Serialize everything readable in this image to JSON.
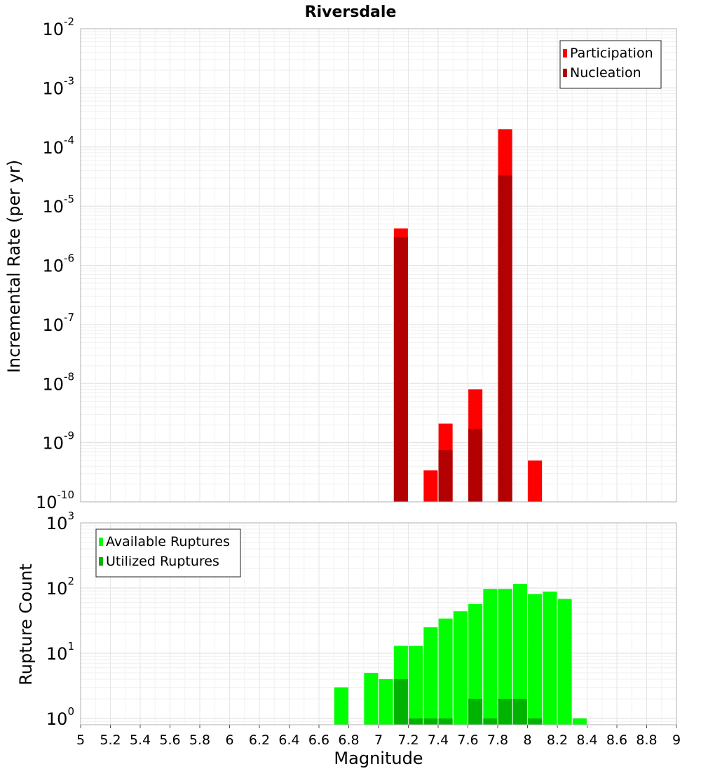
{
  "chart_data": [
    {
      "type": "bar",
      "title": "Riversdale",
      "ylabel": "Incremental Rate (per yr)",
      "xlabel": "",
      "yscale": "log",
      "ylim": [
        1e-10,
        0.01
      ],
      "xlim": [
        5,
        9
      ],
      "grid": true,
      "legend_position": "top-right",
      "x": [
        7.15,
        7.35,
        7.45,
        7.65,
        7.85,
        8.05
      ],
      "series": [
        {
          "name": "Participation",
          "color": "#ff0000",
          "values": [
            4.2e-06,
            3.4e-10,
            2.1e-09,
            8e-09,
            0.0002,
            5e-10
          ]
        },
        {
          "name": "Nucleation",
          "color": "#b30000",
          "values": [
            3e-06,
            null,
            7.5e-10,
            1.7e-09,
            3.3e-05,
            null
          ]
        }
      ],
      "ytick_labels": [
        {
          "base": "10",
          "exp": "-2"
        },
        {
          "base": "10",
          "exp": "-3"
        },
        {
          "base": "10",
          "exp": "-4"
        },
        {
          "base": "10",
          "exp": "-5"
        },
        {
          "base": "10",
          "exp": "-6"
        },
        {
          "base": "10",
          "exp": "-7"
        },
        {
          "base": "10",
          "exp": "-8"
        },
        {
          "base": "10",
          "exp": "-9"
        },
        {
          "base": "10",
          "exp": "-10"
        }
      ]
    },
    {
      "type": "bar",
      "title": "",
      "ylabel": "Rupture Count",
      "xlabel": "Magnitude",
      "yscale": "log",
      "ylim": [
        0.8,
        1000
      ],
      "xlim": [
        5,
        9
      ],
      "grid": true,
      "legend_position": "top-left",
      "x": [
        6.75,
        6.95,
        7.05,
        7.15,
        7.25,
        7.35,
        7.45,
        7.55,
        7.65,
        7.75,
        7.85,
        7.95,
        8.05,
        8.15,
        8.25,
        8.35
      ],
      "series": [
        {
          "name": "Available Ruptures",
          "color": "#00ff00",
          "values": [
            3,
            5,
            4,
            13,
            13,
            25,
            34,
            44,
            57,
            97,
            97,
            116,
            81,
            88,
            68,
            1
          ]
        },
        {
          "name": "Utilized Ruptures",
          "color": "#00b300",
          "values": [
            null,
            null,
            null,
            4,
            1,
            1,
            1,
            null,
            2,
            1,
            2,
            2,
            1,
            null,
            null,
            null
          ]
        }
      ],
      "ytick_labels": [
        {
          "base": "10",
          "exp": "3"
        },
        {
          "base": "10",
          "exp": "2"
        },
        {
          "base": "10",
          "exp": "1"
        },
        {
          "base": "10",
          "exp": "0"
        }
      ],
      "xtick_labels": [
        "5",
        "5.2",
        "5.4",
        "5.6",
        "5.8",
        "6",
        "6.2",
        "6.4",
        "6.6",
        "6.8",
        "7",
        "7.2",
        "7.4",
        "7.6",
        "7.8",
        "8",
        "8.2",
        "8.4",
        "8.6",
        "8.8",
        "9"
      ]
    }
  ]
}
